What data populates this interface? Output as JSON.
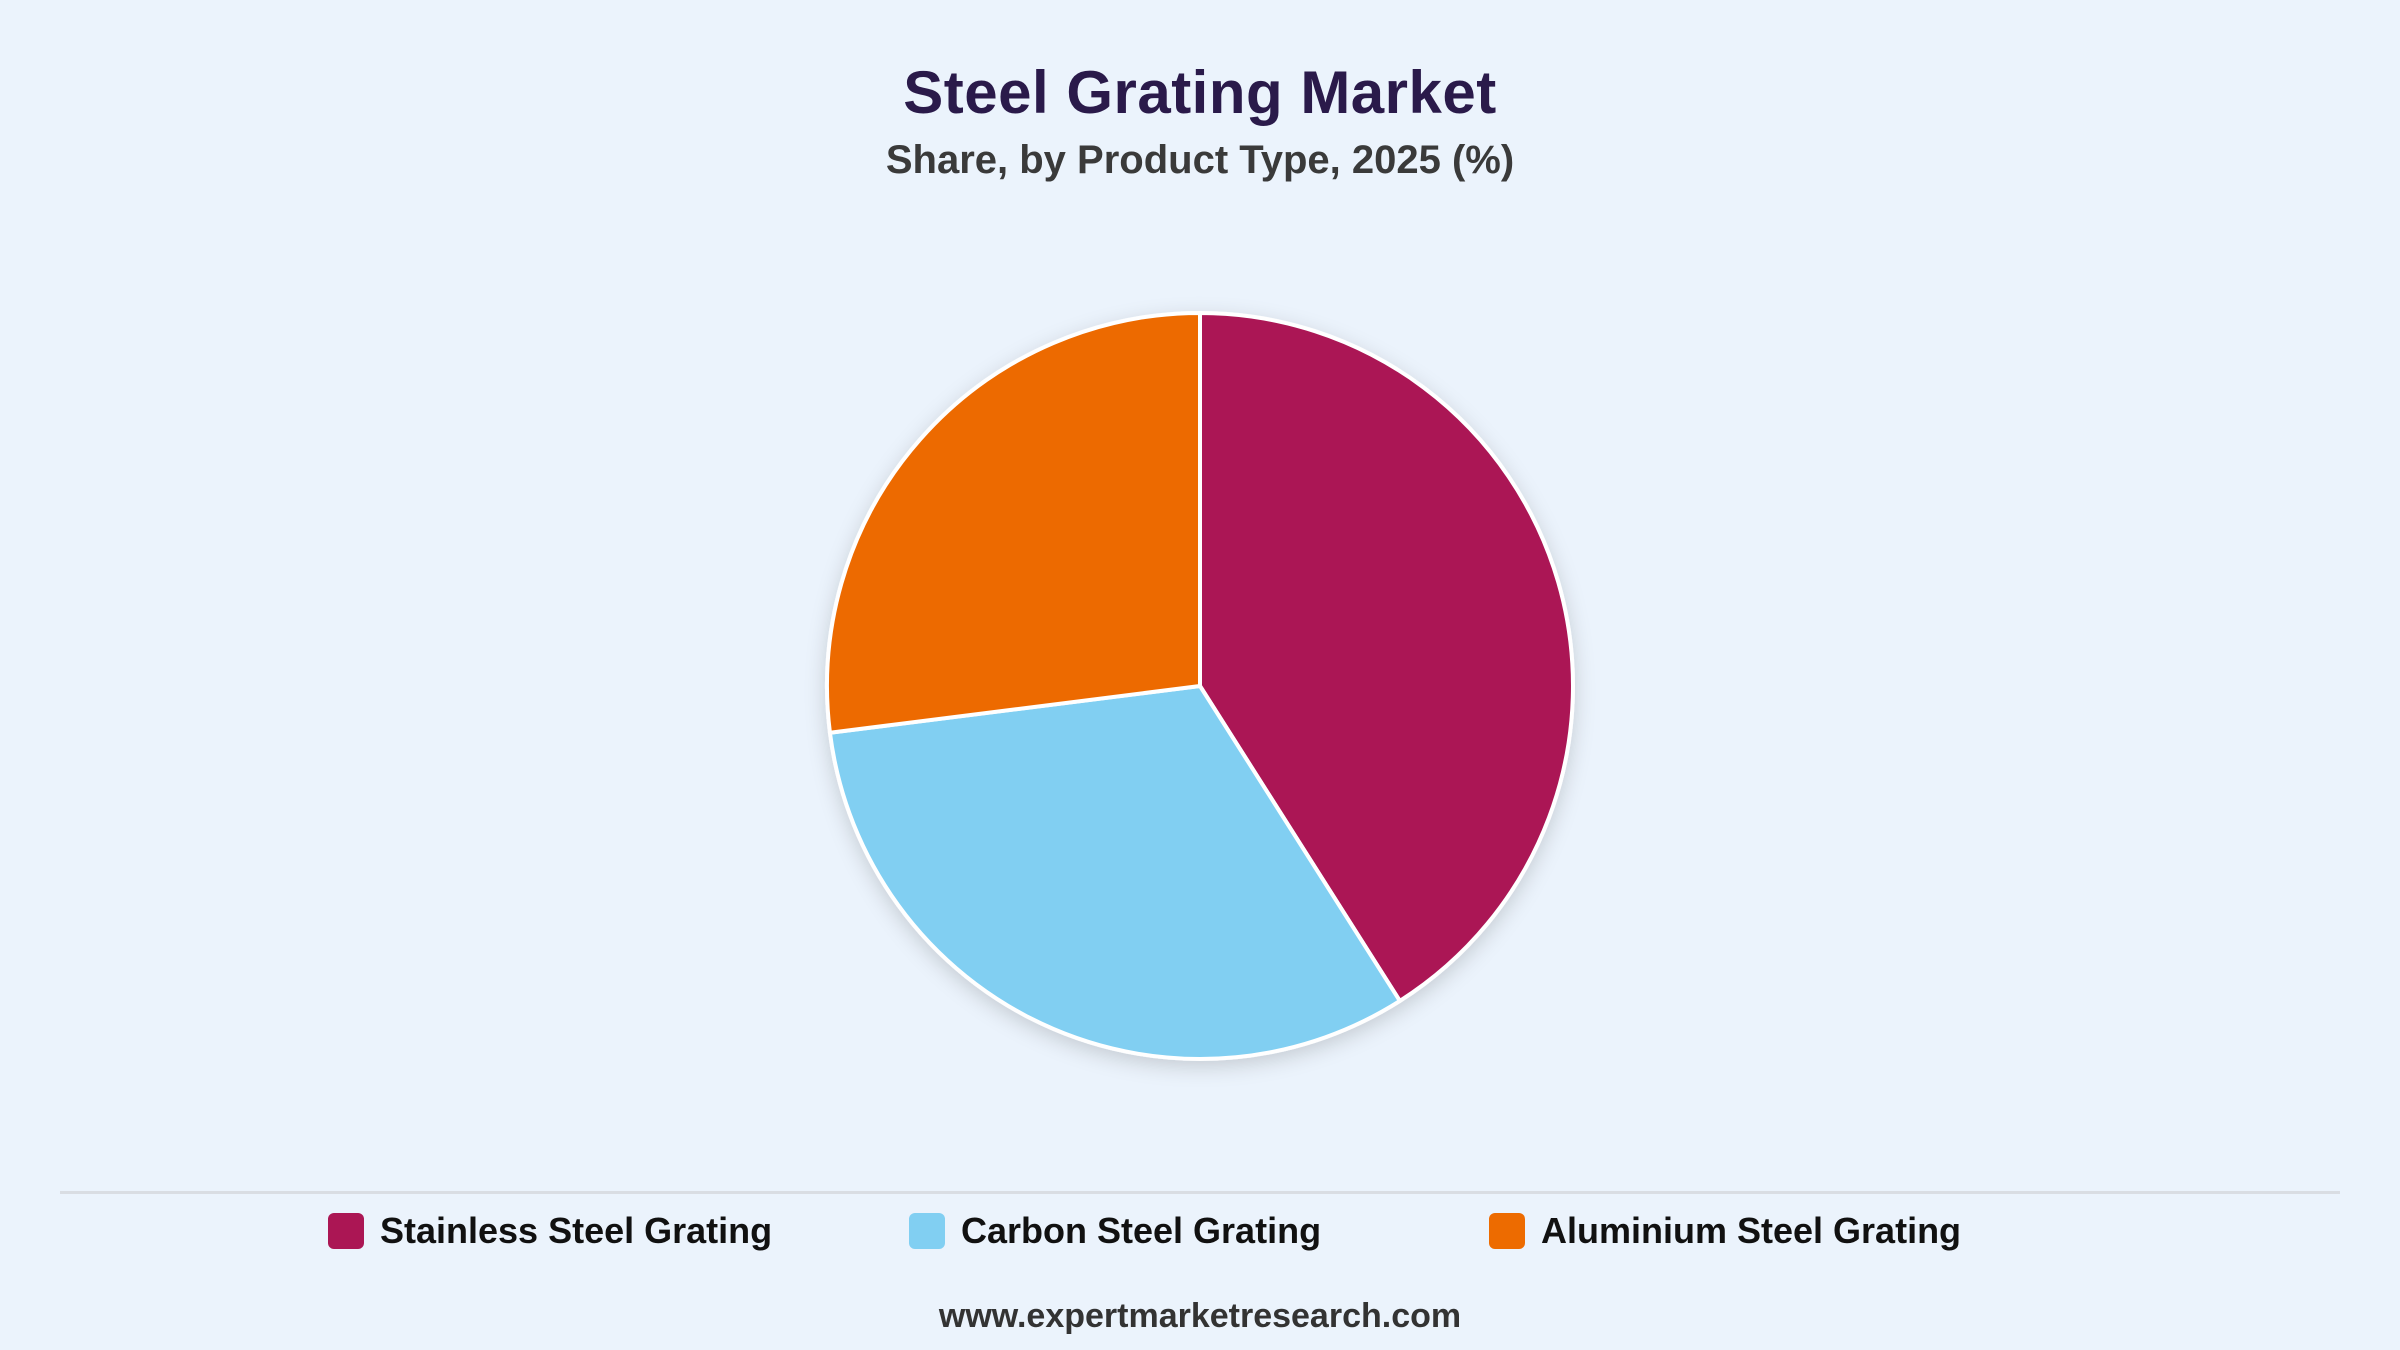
{
  "title": "Steel Grating Market",
  "subtitle": "Share, by Product Type, 2025 (%)",
  "footer": "www.expertmarketresearch.com",
  "chart_data": {
    "type": "pie",
    "title": "Steel Grating Market",
    "subtitle": "Share, by Product Type, 2025 (%)",
    "legend_position": "bottom",
    "slices": [
      {
        "label": "Stainless Steel Grating",
        "value": 41,
        "color": "#ab1654"
      },
      {
        "label": "Carbon Steel Grating",
        "value": 32,
        "color": "#81cff2"
      },
      {
        "label": "Aluminium Steel Grating",
        "value": 27,
        "color": "#ed6b00"
      }
    ]
  }
}
